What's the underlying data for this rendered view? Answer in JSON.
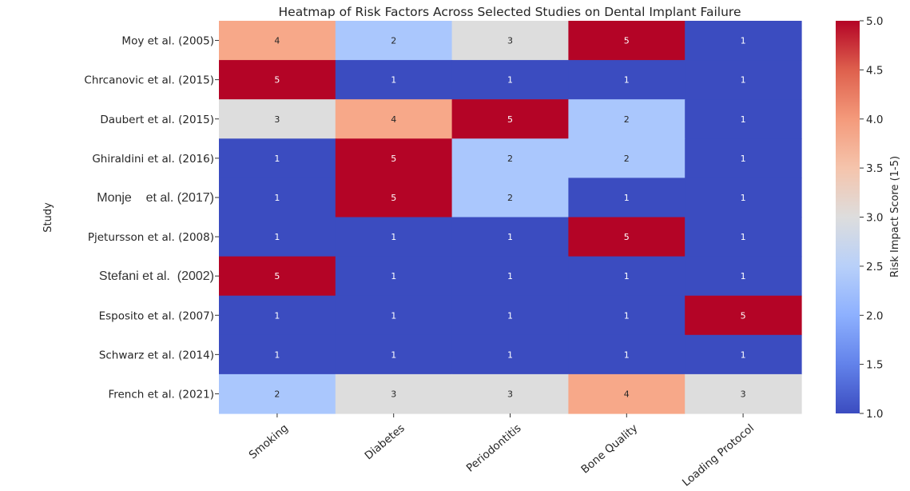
{
  "chart_data": {
    "type": "heatmap",
    "title": "Heatmap of Risk Factors Across Selected Studies on Dental Implant Failure",
    "xlabel": "",
    "ylabel": "Study",
    "columns": [
      "Smoking",
      "Diabetes",
      "Periodontitis",
      "Bone Quality",
      "Loading Protocol"
    ],
    "rows": [
      "Moy et al. (2005)",
      "Chrcanovic et al. (2015)",
      "Daubert et al. (2015)",
      "Ghiraldini et al. (2016)",
      "Monje    et al. (2017)",
      "Pjetursson et al. (2008)",
      "Stefani et al.  (2002)",
      "Esposito et al. (2007)",
      "Schwarz et al. (2014)",
      "French et al. (2021)"
    ],
    "values": [
      [
        4,
        2,
        3,
        5,
        1
      ],
      [
        5,
        1,
        1,
        1,
        1
      ],
      [
        3,
        4,
        5,
        2,
        1
      ],
      [
        1,
        5,
        2,
        2,
        1
      ],
      [
        1,
        5,
        2,
        1,
        1
      ],
      [
        1,
        1,
        1,
        5,
        1
      ],
      [
        5,
        1,
        1,
        1,
        1
      ],
      [
        1,
        1,
        1,
        1,
        5
      ],
      [
        1,
        1,
        1,
        1,
        1
      ],
      [
        2,
        3,
        3,
        4,
        3
      ]
    ],
    "colorbar": {
      "label": "Risk Impact Score (1-5)",
      "range": [
        1.0,
        5.0
      ],
      "ticks": [
        "1.0",
        "1.5",
        "2.0",
        "2.5",
        "3.0",
        "3.5",
        "4.0",
        "4.5",
        "5.0"
      ],
      "colormap": "coolwarm"
    },
    "colors": {
      "1": "#3b4cc0",
      "2": "#aac7fd",
      "3": "#dddddd",
      "4": "#f7a889",
      "5": "#b40426"
    },
    "grid": false,
    "legend": "colorbar-right"
  }
}
